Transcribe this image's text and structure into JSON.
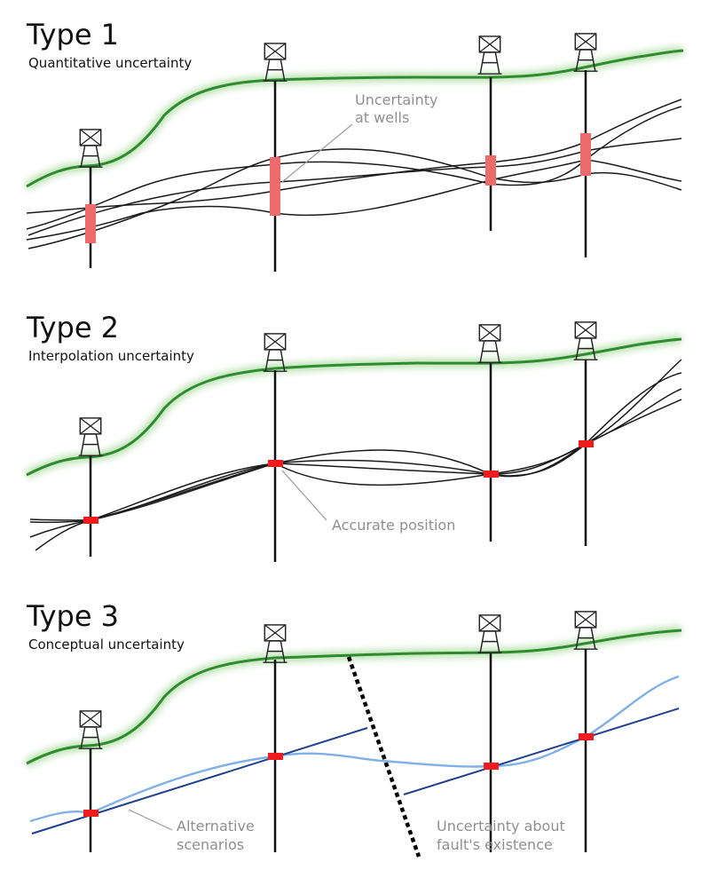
{
  "panels": [
    {
      "title": "Type 1",
      "subtitle": "Quantitative uncertainty",
      "annotation": [
        "Uncertainty",
        "at wells"
      ]
    },
    {
      "title": "Type 2",
      "subtitle": "Interpolation uncertainty",
      "annotation": [
        "Accurate position"
      ]
    },
    {
      "title": "Type 3",
      "subtitle": "Conceptual uncertainty",
      "annotation_left": [
        "Alternative",
        "scenarios"
      ],
      "annotation_right": [
        "Uncertainty about",
        "fault's existence"
      ]
    }
  ],
  "colors": {
    "ground": "#2e8b2e",
    "ground_glow": "#b9e2b0",
    "well": "#111111",
    "uncertainty_bar": "#ee6b6b",
    "marker": "#ee1c1c",
    "horizon": "#1b1b1b",
    "scenario_dark": "#1f3f8f",
    "scenario_light": "#7fb0e6",
    "fault": "#000000",
    "annotation": "#8f8f8f"
  }
}
